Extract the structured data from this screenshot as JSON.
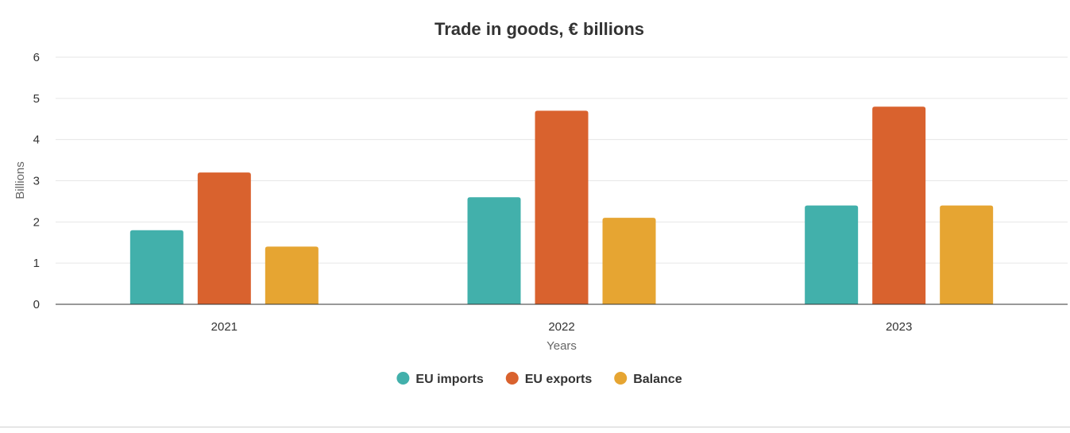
{
  "chart_data": {
    "type": "bar",
    "title": "Trade in goods, € billions",
    "xlabel": "Years",
    "ylabel": "Billions",
    "categories": [
      "2021",
      "2022",
      "2023"
    ],
    "series": [
      {
        "name": "EU imports",
        "color": "#42b0ab",
        "values": [
          1.8,
          2.6,
          2.4
        ]
      },
      {
        "name": "EU exports",
        "color": "#d9622e",
        "values": [
          3.2,
          4.7,
          4.8
        ]
      },
      {
        "name": "Balance",
        "color": "#e6a532",
        "values": [
          1.4,
          2.1,
          2.4
        ]
      }
    ],
    "ylim": [
      0,
      6
    ],
    "yticks": [
      "0",
      "1",
      "2",
      "3",
      "4",
      "5",
      "6"
    ],
    "grid": true,
    "legend_position": "bottom-center"
  }
}
